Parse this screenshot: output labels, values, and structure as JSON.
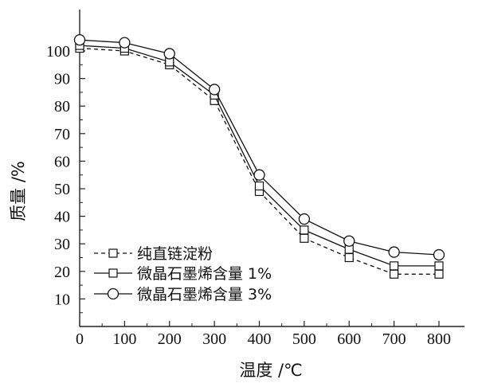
{
  "chart_data": {
    "type": "line",
    "xlabel": "温度 /℃",
    "ylabel": "质量 /%",
    "xlim": [
      0,
      800
    ],
    "ylim": [
      0,
      110
    ],
    "x_ticks": [
      0,
      100,
      200,
      300,
      400,
      500,
      600,
      700,
      800
    ],
    "y_ticks": [
      10,
      20,
      30,
      40,
      50,
      60,
      70,
      80,
      90,
      100
    ],
    "grid": false,
    "legend_position": "bottom-left",
    "series": [
      {
        "name": "纯直链淀粉",
        "line": "dashed",
        "marker": "square",
        "x": [
          0,
          100,
          200,
          300,
          400,
          500,
          600,
          700,
          800
        ],
        "y": [
          101,
          100,
          95,
          82,
          49,
          32,
          25,
          19,
          19
        ]
      },
      {
        "name": "微晶石墨烯含量 1%",
        "line": "solid",
        "marker": "square",
        "x": [
          0,
          100,
          200,
          300,
          400,
          500,
          600,
          700,
          800
        ],
        "y": [
          102,
          101,
          96,
          84,
          51,
          35,
          28,
          22,
          22
        ]
      },
      {
        "name": "微晶石墨烯含量 3%",
        "line": "solid",
        "marker": "circle",
        "x": [
          0,
          100,
          200,
          300,
          400,
          500,
          600,
          700,
          800
        ],
        "y": [
          104,
          103,
          99,
          86,
          55,
          39,
          31,
          27,
          26
        ]
      }
    ]
  }
}
